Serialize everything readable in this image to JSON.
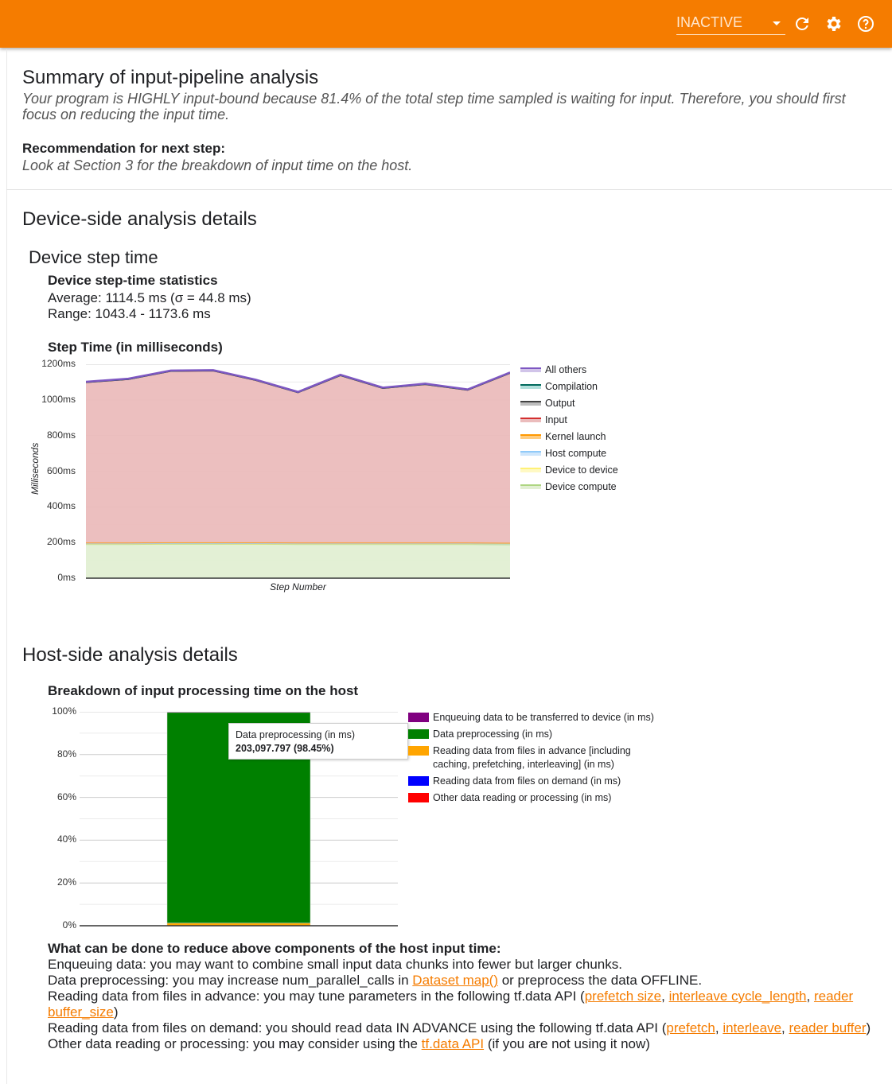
{
  "header": {
    "selector_value": "INACTIVE",
    "icons": [
      "refresh-icon",
      "settings-icon",
      "help-icon"
    ],
    "color": "#f57c00"
  },
  "summary": {
    "title": "Summary of input-pipeline analysis",
    "text": "Your program is HIGHLY input-bound because 81.4% of the total step time sampled is waiting for input. Therefore, you should first focus on reducing the input time.",
    "rec_label": "Recommendation for next step:",
    "rec_text": "Look at Section 3 for the breakdown of input time on the host."
  },
  "device": {
    "title": "Device-side analysis details",
    "subtitle": "Device step time",
    "stats_title": "Device step-time statistics",
    "average": "Average: 1114.5 ms (σ = 44.8 ms)",
    "range": "Range: 1043.4 - 1173.6 ms"
  },
  "chart_data": [
    {
      "type": "area",
      "stacked": true,
      "title": "Step Time (in milliseconds)",
      "xlabel": "Step Number",
      "ylabel": "Milliseconds",
      "ylim": [
        0,
        1200
      ],
      "yticks": [
        "0ms",
        "200ms",
        "400ms",
        "600ms",
        "800ms",
        "1000ms",
        "1200ms"
      ],
      "grid": true,
      "legend": "right",
      "x": [
        1,
        2,
        3,
        4,
        5,
        6,
        7,
        8,
        9,
        10,
        11
      ],
      "series": [
        {
          "name": "Device compute",
          "color": "#aed581",
          "fill": "#e2efd3",
          "values": [
            190,
            190,
            192,
            192,
            191,
            190,
            190,
            190,
            190,
            190,
            189
          ]
        },
        {
          "name": "Device to device",
          "color": "#fff176",
          "fill": "#fff9c4",
          "values": [
            2,
            2,
            2,
            2,
            2,
            2,
            2,
            2,
            2,
            2,
            2
          ]
        },
        {
          "name": "Host compute",
          "color": "#90caf9",
          "fill": "#cfe6fb",
          "values": [
            2,
            2,
            2,
            2,
            2,
            2,
            2,
            2,
            2,
            2,
            2
          ]
        },
        {
          "name": "Kernel launch",
          "color": "#ff9800",
          "fill": "#ffcc80",
          "values": [
            5,
            5,
            5,
            5,
            5,
            5,
            5,
            5,
            5,
            5,
            5
          ]
        },
        {
          "name": "Input",
          "color": "#d32f2f",
          "fill": "#ebbcbc",
          "values": [
            899,
            916,
            960,
            962,
            910,
            842,
            938,
            866,
            888,
            856,
            952
          ]
        },
        {
          "name": "Output",
          "color": "#424242",
          "fill": "#bdbdbd",
          "values": [
            0,
            0,
            0,
            0,
            0,
            0,
            0,
            0,
            0,
            0,
            0
          ]
        },
        {
          "name": "Compilation",
          "color": "#00695c",
          "fill": "#b2dfdb",
          "values": [
            1,
            1,
            1,
            1,
            1,
            1,
            1,
            1,
            1,
            1,
            1
          ]
        },
        {
          "name": "All others",
          "color": "#7e57c2",
          "fill": "#d1c4e9",
          "values": [
            3,
            3,
            3,
            3,
            3,
            3,
            3,
            3,
            3,
            3,
            3
          ]
        }
      ]
    },
    {
      "type": "bar",
      "stacked": true,
      "percent": true,
      "title": "Breakdown of input processing time on the host",
      "ylim": [
        0,
        100
      ],
      "yticks": [
        "0%",
        "20%",
        "40%",
        "60%",
        "80%",
        "100%"
      ],
      "legend": "right",
      "series": [
        {
          "name": "Other data reading or processing (in ms)",
          "color": "#ff0000",
          "value": 0
        },
        {
          "name": "Reading data from files on demand (in ms)",
          "color": "#0000ff",
          "value": 0
        },
        {
          "name": "Reading data from files in advance [including caching, prefetching, interleaving] (in ms)",
          "color": "#ffa500",
          "value": 1.25
        },
        {
          "name": "Data preprocessing (in ms)",
          "color": "#008000",
          "value": 98.45
        },
        {
          "name": "Enqueuing data to be transferred to device (in ms)",
          "color": "#800080",
          "value": 0.3
        }
      ],
      "tooltip": {
        "label": "Data preprocessing (in ms)",
        "value": "203,097.797 (98.45%)"
      }
    }
  ],
  "host": {
    "title": "Host-side analysis details",
    "advice_title": "What can be done to reduce above components of the host input time:",
    "l1": "Enqueuing data: you may want to combine small input data chunks into fewer but larger chunks.",
    "l2a": "Data preprocessing: you may increase num_parallel_calls in ",
    "l2link": "Dataset map()",
    "l2b": " or preprocess the data OFFLINE.",
    "l3a": "Reading data from files in advance: you may tune parameters in the following tf.data API (",
    "l3l1": "prefetch size",
    "l3l2": "interleave cycle_length",
    "l3l3": "reader buffer_size",
    "l3b": ")",
    "l4a": "Reading data from files on demand: you should read data IN ADVANCE using the following tf.data API (",
    "l4l1": "prefetch",
    "l4l2": "interleave",
    "l4l3": "reader buffer",
    "l4b": ")",
    "l5a": "Other data reading or processing: you may consider using the ",
    "l5link": "tf.data API",
    "l5b": " (if you are not using it now)"
  }
}
